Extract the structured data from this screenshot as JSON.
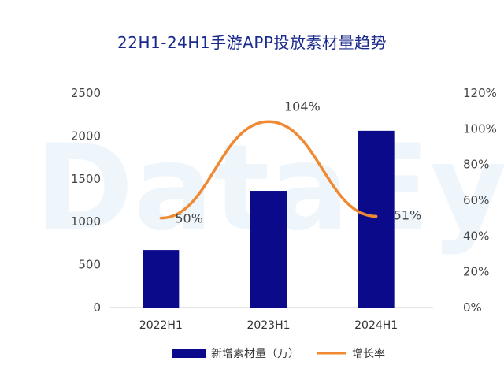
{
  "chart_data": {
    "type": "bar",
    "title": "22H1-24H1手游APP投放素材量趋势",
    "categories": [
      "2022H1",
      "2023H1",
      "2024H1"
    ],
    "series": [
      {
        "name": "新增素材量（万）",
        "type": "bar",
        "axis": "left",
        "values": [
          670,
          1360,
          2060
        ]
      },
      {
        "name": "增长率",
        "type": "line",
        "axis": "right",
        "values": [
          50,
          104,
          51
        ],
        "labels": [
          "50%",
          "104%",
          "51%"
        ]
      }
    ],
    "y_left": {
      "min": 0,
      "max": 2500,
      "ticks": [
        "0",
        "500",
        "1000",
        "1500",
        "2000",
        "2500"
      ]
    },
    "y_right": {
      "min": 0,
      "max": 120,
      "ticks": [
        "0%",
        "20%",
        "40%",
        "60%",
        "80%",
        "100%",
        "120%"
      ]
    },
    "legend": {
      "position": "bottom"
    },
    "watermark": "DataEye",
    "colors": {
      "bar": "#0a0a8a",
      "line": "#ef8a32",
      "title": "#1a2a8c",
      "axis": "#cccccc"
    }
  }
}
